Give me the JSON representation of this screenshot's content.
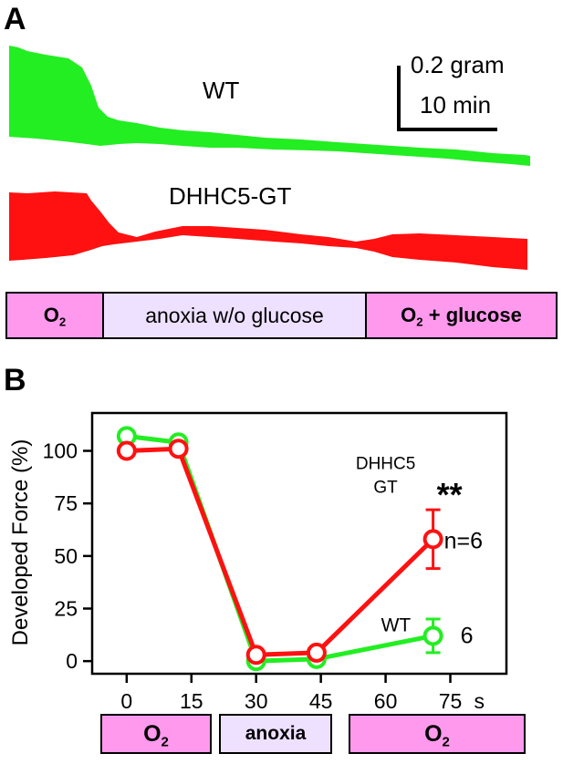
{
  "panel_a": {
    "label": "A",
    "trace_labels": {
      "wt": "WT",
      "dhhc5": "DHHC5-GT"
    },
    "scale_bar": {
      "force": "0.2 gram",
      "time": "10 min"
    },
    "colors": {
      "wt": "#22ee22",
      "dhhc5": "#ff1111"
    },
    "conditions": [
      {
        "main": "O",
        "sub": "2",
        "suffix": "",
        "fill": "#ff99ee",
        "bold": true
      },
      {
        "main": "anoxia w/o glucose",
        "sub": "",
        "suffix": "",
        "fill": "#eee0ff",
        "bold": false
      },
      {
        "main": "O",
        "sub": "2",
        "suffix": " + glucose",
        "fill": "#ff99ee",
        "bold": true
      }
    ]
  },
  "panel_b": {
    "label": "B",
    "conditions": [
      {
        "main": "O",
        "sub": "2",
        "fill": "#ff99ee"
      },
      {
        "main": "anoxia",
        "sub": "",
        "fill": "#eee0ff"
      },
      {
        "main": "O",
        "sub": "2",
        "fill": "#ff99ee"
      }
    ]
  },
  "chart_data": {
    "type": "line",
    "ylabel": "Developed Force (%)",
    "xlabel": "",
    "x_unit_label": "s",
    "xticks": [
      "0",
      "15",
      "30",
      "45",
      "60",
      "75"
    ],
    "yticks": [
      "0",
      "25",
      "50",
      "75",
      "100"
    ],
    "xlim": [
      -8,
      88
    ],
    "ylim": [
      -6,
      118
    ],
    "grid": false,
    "series": [
      {
        "name": "WT",
        "label": "WT",
        "n_label": "6",
        "color": "#22ee22",
        "x": [
          0,
          12,
          30,
          44,
          71
        ],
        "y": [
          107,
          104,
          0,
          1,
          12
        ],
        "err": [
          0,
          0,
          0,
          0,
          8
        ]
      },
      {
        "name": "DHHC5 GT",
        "label_lines": [
          "DHHC5",
          "GT"
        ],
        "n_label": "n=6",
        "color": "#ff1111",
        "x": [
          0,
          12,
          30,
          44,
          71
        ],
        "y": [
          100,
          101,
          3,
          4,
          58
        ],
        "err": [
          0,
          0,
          0,
          0,
          14
        ]
      }
    ],
    "annotations": [
      {
        "text": "**",
        "series": "DHHC5 GT",
        "x": 71
      }
    ]
  }
}
